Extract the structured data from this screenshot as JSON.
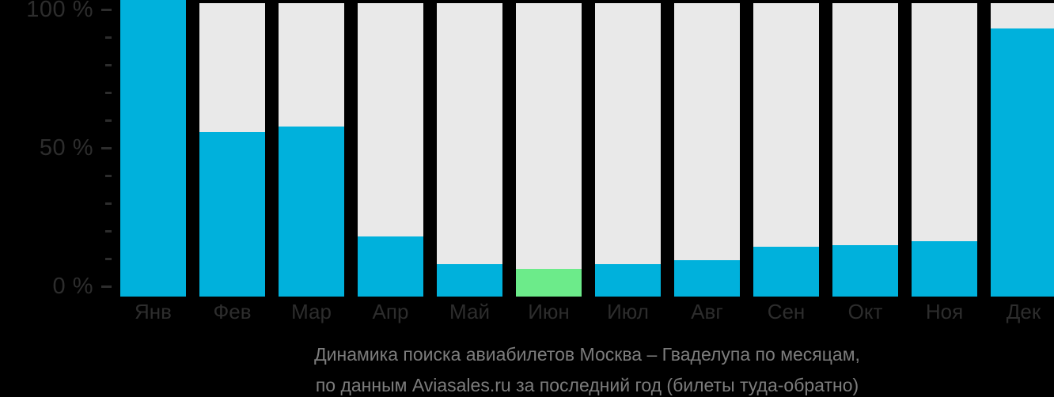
{
  "chart_data": {
    "type": "bar",
    "title": "Динамика поиска авиабилетов Москва – Гваделупа по месяцам,",
    "subtitle": "по данным Aviasales.ru за последний год (билеты туда-обратно)",
    "categories": [
      "Янв",
      "Фев",
      "Мар",
      "Апр",
      "Май",
      "Июн",
      "Июл",
      "Авг",
      "Сен",
      "Окт",
      "Ноя",
      "Дек"
    ],
    "values": [
      100,
      56,
      58,
      20.5,
      11,
      9.5,
      11,
      12.5,
      17,
      17.5,
      19,
      91.5
    ],
    "highlight_index": 5,
    "xlabel": "",
    "ylabel": "",
    "ylim": [
      0,
      100
    ],
    "yticks": [
      {
        "value": 100,
        "label": "100 %"
      },
      {
        "value": 50,
        "label": "50 %"
      },
      {
        "value": 0,
        "label": "0 %"
      }
    ],
    "minor_tick_values": [
      90,
      80,
      70,
      60,
      40,
      30,
      20,
      10
    ],
    "legend": "none",
    "grid": "off",
    "colors": {
      "bar": "#00b1dc",
      "highlight_bar": "#6ceb8a",
      "track": "#e9e9e9",
      "axis_text": "#2d2d2d",
      "caption_text": "#7c7c7c",
      "background": "#000000"
    }
  }
}
